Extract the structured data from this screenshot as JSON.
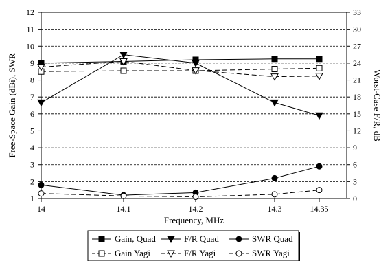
{
  "chart_data": {
    "type": "line",
    "x": [
      14,
      14.1,
      14.2,
      14.3,
      14.35
    ],
    "x_tick_labels": [
      "14",
      "14.1",
      "14.2",
      "14.3",
      "14.35"
    ],
    "xlabel": "Frequency, MHz",
    "ylabel": "Free-Space Gain (dBi), SWR",
    "y2label": "Worst-Case F/R, dB",
    "ylim": [
      1,
      12
    ],
    "y2lim": [
      0,
      33
    ],
    "y_ticks": [
      1,
      2,
      3,
      4,
      5,
      6,
      7,
      8,
      9,
      10,
      11,
      12
    ],
    "y2_ticks": [
      0,
      3,
      6,
      9,
      12,
      15,
      18,
      21,
      24,
      27,
      30,
      33
    ],
    "grid": "horizontal dashed",
    "legend_position": "bottom",
    "series": [
      {
        "name": "Gain, Quad",
        "axis": "left",
        "values": [
          9.0,
          9.1,
          9.2,
          9.25,
          9.25
        ],
        "marker": "filled-square",
        "dash": "solid"
      },
      {
        "name": "F/R Quad",
        "axis": "right",
        "values": [
          17.0,
          25.5,
          24.0,
          17.0,
          14.7
        ],
        "marker": "filled-triangle-down",
        "dash": "solid"
      },
      {
        "name": "SWR Quad",
        "axis": "left",
        "values": [
          1.8,
          1.2,
          1.35,
          2.2,
          2.9
        ],
        "marker": "filled-circle",
        "dash": "solid"
      },
      {
        "name": "Gain Yagi",
        "axis": "left",
        "values": [
          8.5,
          8.55,
          8.55,
          8.65,
          8.7
        ],
        "marker": "open-square",
        "dash": "dashed"
      },
      {
        "name": "F/R Yagi",
        "axis": "right",
        "values": [
          23.3,
          24.3,
          22.7,
          21.6,
          21.7
        ],
        "marker": "open-triangle-down",
        "dash": "dashed"
      },
      {
        "name": "SWR Yagi",
        "axis": "left",
        "values": [
          1.3,
          1.15,
          1.1,
          1.25,
          1.5
        ],
        "marker": "open-circle",
        "dash": "dashed"
      }
    ]
  }
}
